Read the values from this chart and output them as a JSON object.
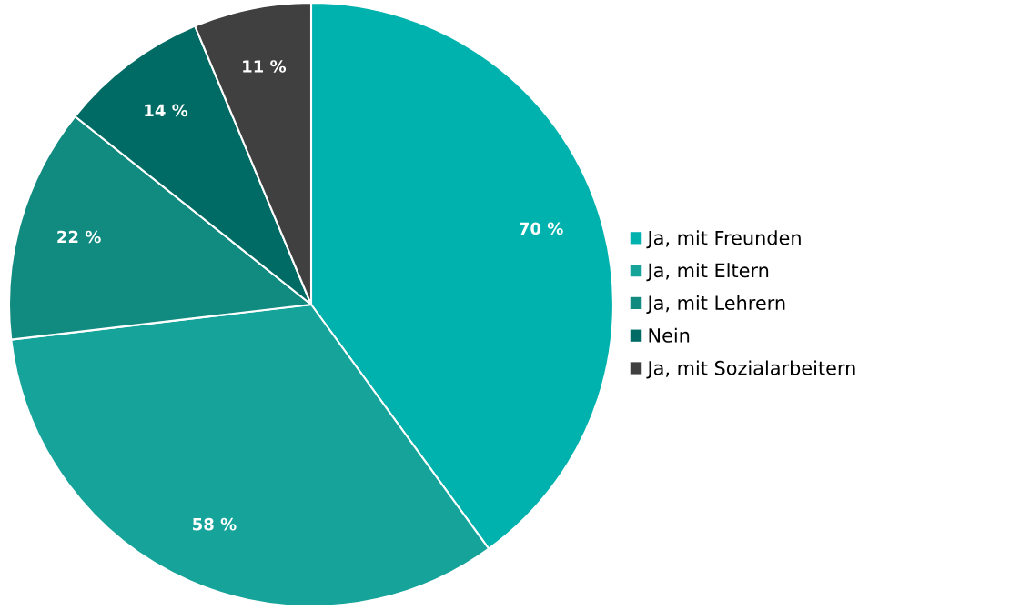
{
  "chart_data": {
    "type": "pie",
    "categories": [
      "Ja, mit Freunden",
      "Ja, mit Eltern",
      "Ja, mit Lehrern",
      "Nein",
      "Ja, mit Sozialarbeitern"
    ],
    "values": [
      70,
      58,
      22,
      14,
      11
    ],
    "value_labels": [
      "70 %",
      "58 %",
      "22 %",
      "14 %",
      "11 %"
    ],
    "colors": [
      "#00b2ae",
      "#15a39a",
      "#118a80",
      "#006b64",
      "#404040"
    ],
    "legend": "right"
  }
}
